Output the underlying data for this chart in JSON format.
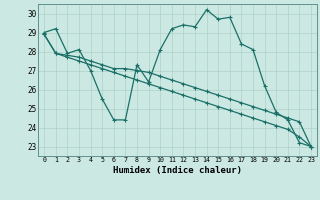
{
  "xlabel": "Humidex (Indice chaleur)",
  "bg_color": "#cce8e2",
  "line_color": "#1a7068",
  "grid_color": "#aed0ca",
  "xlim": [
    -0.5,
    23.5
  ],
  "ylim": [
    22.5,
    30.5
  ],
  "yticks": [
    23,
    24,
    25,
    26,
    27,
    28,
    29,
    30
  ],
  "xticks": [
    0,
    1,
    2,
    3,
    4,
    5,
    6,
    7,
    8,
    9,
    10,
    11,
    12,
    13,
    14,
    15,
    16,
    17,
    18,
    19,
    20,
    21,
    22,
    23
  ],
  "series1": [
    29.0,
    29.2,
    27.9,
    28.1,
    27.0,
    25.5,
    24.4,
    24.4,
    27.3,
    26.4,
    28.1,
    29.2,
    29.4,
    29.3,
    30.2,
    29.7,
    29.8,
    28.4,
    28.1,
    26.2,
    24.8,
    24.4,
    23.2,
    23.0
  ],
  "series2": [
    28.9,
    27.9,
    27.8,
    27.7,
    27.5,
    27.3,
    27.1,
    27.1,
    27.0,
    26.9,
    26.7,
    26.5,
    26.3,
    26.1,
    25.9,
    25.7,
    25.5,
    25.3,
    25.1,
    24.9,
    24.7,
    24.5,
    24.3,
    23.0
  ],
  "series3": [
    28.9,
    27.9,
    27.7,
    27.5,
    27.3,
    27.1,
    26.9,
    26.7,
    26.5,
    26.3,
    26.1,
    25.9,
    25.7,
    25.5,
    25.3,
    25.1,
    24.9,
    24.7,
    24.5,
    24.3,
    24.1,
    23.9,
    23.5,
    23.0
  ]
}
